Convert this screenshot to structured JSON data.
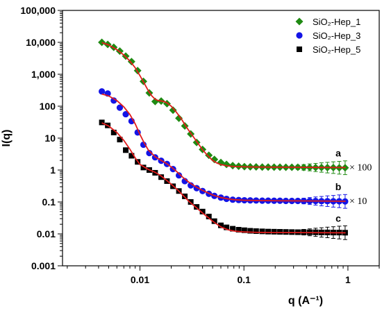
{
  "chart_data": {
    "type": "scatter",
    "x_scale": "log",
    "y_scale": "log",
    "xlabel": "q (A⁻¹)",
    "ylabel": "I(q)",
    "xlim": [
      0.0018,
      2.0
    ],
    "ylim": [
      0.001,
      100000
    ],
    "x_ticks": [
      0.01,
      0.1,
      1
    ],
    "x_tick_labels": [
      "0.01",
      "0.1",
      "1"
    ],
    "y_ticks": [
      0.001,
      0.01,
      0.1,
      1,
      10,
      100,
      1000,
      10000,
      100000
    ],
    "y_tick_labels": [
      "0.001",
      "0.01",
      "0.1",
      "1",
      "10",
      "100",
      "1,000",
      "10,000",
      "100,000"
    ],
    "grid": false,
    "legend_position": "top-right",
    "fit_color": "#e11b1b",
    "series": [
      {
        "name": "SiO₂-Hep_1",
        "marker": "diamond",
        "color": "#1f8a12",
        "tag": "a",
        "multiplier": "× 100",
        "x": [
          0.0043,
          0.0049,
          0.0056,
          0.0064,
          0.0073,
          0.0083,
          0.0095,
          0.0108,
          0.0123,
          0.014,
          0.016,
          0.0182,
          0.0208,
          0.0237,
          0.027,
          0.0308,
          0.0351,
          0.04,
          0.046,
          0.052,
          0.06,
          0.068,
          0.078,
          0.089,
          0.101,
          0.115,
          0.131,
          0.15,
          0.171,
          0.195,
          0.222,
          0.253,
          0.289,
          0.33,
          0.376,
          0.429,
          0.489,
          0.557,
          0.635,
          0.724,
          0.825,
          0.94
        ],
        "y": [
          10000,
          8600,
          7000,
          5300,
          3700,
          2500,
          1300,
          600,
          260,
          140,
          145,
          120,
          75,
          42,
          24,
          13.5,
          7.3,
          4.4,
          2.9,
          2.15,
          1.72,
          1.5,
          1.38,
          1.32,
          1.28,
          1.26,
          1.25,
          1.24,
          1.24,
          1.23,
          1.23,
          1.22,
          1.22,
          1.22,
          1.21,
          1.21,
          1.2,
          1.2,
          1.19,
          1.19,
          1.18,
          1.18
        ],
        "error_from_q": 0.3,
        "fit": {
          "x": [
            0.0043,
            0.005,
            0.006,
            0.007,
            0.008,
            0.009,
            0.01,
            0.011,
            0.012,
            0.013,
            0.014,
            0.015,
            0.016,
            0.017,
            0.018,
            0.02,
            0.022,
            0.025,
            0.028,
            0.032,
            0.036,
            0.04,
            0.045,
            0.05,
            0.055,
            0.06,
            0.07,
            0.08,
            0.1,
            0.13,
            0.2,
            0.3,
            0.5,
            0.95
          ],
          "y": [
            9800,
            8300,
            5900,
            4000,
            2600,
            1600,
            900,
            520,
            310,
            210,
            165,
            150,
            146,
            140,
            130,
            100,
            70,
            40,
            22,
            12,
            7,
            4.3,
            2.8,
            2.0,
            1.65,
            1.48,
            1.34,
            1.29,
            1.26,
            1.24,
            1.23,
            1.22,
            1.21,
            1.2
          ]
        }
      },
      {
        "name": "SiO₂-Hep_3",
        "marker": "circle",
        "color": "#1414e6",
        "tag": "b",
        "multiplier": "× 10",
        "x": [
          0.0043,
          0.0049,
          0.0056,
          0.0064,
          0.0073,
          0.0083,
          0.0095,
          0.0108,
          0.0123,
          0.014,
          0.016,
          0.0182,
          0.0208,
          0.0237,
          0.027,
          0.0308,
          0.0351,
          0.04,
          0.046,
          0.052,
          0.06,
          0.068,
          0.078,
          0.089,
          0.101,
          0.115,
          0.131,
          0.15,
          0.171,
          0.195,
          0.222,
          0.253,
          0.289,
          0.33,
          0.376,
          0.429,
          0.489,
          0.557,
          0.635,
          0.724,
          0.825,
          0.94
        ],
        "y": [
          290,
          250,
          150,
          90,
          56,
          34,
          15,
          6.2,
          3.4,
          2.5,
          1.95,
          1.55,
          1.07,
          0.68,
          0.45,
          0.33,
          0.27,
          0.22,
          0.18,
          0.155,
          0.137,
          0.125,
          0.118,
          0.115,
          0.113,
          0.112,
          0.111,
          0.11,
          0.11,
          0.109,
          0.109,
          0.108,
          0.108,
          0.108,
          0.107,
          0.107,
          0.107,
          0.106,
          0.106,
          0.105,
          0.105,
          0.104
        ],
        "error_from_q": 0.3,
        "fit": {
          "x": [
            0.0043,
            0.005,
            0.006,
            0.007,
            0.008,
            0.009,
            0.01,
            0.011,
            0.012,
            0.014,
            0.016,
            0.018,
            0.02,
            0.023,
            0.026,
            0.03,
            0.035,
            0.04,
            0.05,
            0.06,
            0.07,
            0.08,
            0.1,
            0.13,
            0.2,
            0.3,
            0.5,
            0.95
          ],
          "y": [
            240,
            210,
            150,
            95,
            55,
            28,
            13,
            7,
            4.3,
            2.6,
            2.0,
            1.6,
            1.25,
            0.85,
            0.58,
            0.4,
            0.29,
            0.23,
            0.165,
            0.138,
            0.125,
            0.118,
            0.113,
            0.111,
            0.109,
            0.108,
            0.107,
            0.105
          ]
        }
      },
      {
        "name": "SiO₂-Hep_5",
        "marker": "square",
        "color": "#000000",
        "tag": "c",
        "multiplier": "",
        "x": [
          0.0043,
          0.0049,
          0.0056,
          0.0064,
          0.0073,
          0.0083,
          0.0095,
          0.0108,
          0.0123,
          0.014,
          0.016,
          0.0182,
          0.0208,
          0.0237,
          0.027,
          0.0308,
          0.0351,
          0.04,
          0.046,
          0.052,
          0.06,
          0.068,
          0.078,
          0.089,
          0.101,
          0.115,
          0.131,
          0.15,
          0.171,
          0.195,
          0.222,
          0.253,
          0.289,
          0.33,
          0.376,
          0.429,
          0.489,
          0.557,
          0.635,
          0.724,
          0.825,
          0.94
        ],
        "y": [
          31,
          25,
          15,
          9,
          4.2,
          2.8,
          1.8,
          1.2,
          1.0,
          0.82,
          0.6,
          0.45,
          0.31,
          0.22,
          0.15,
          0.1,
          0.07,
          0.05,
          0.035,
          0.025,
          0.0185,
          0.016,
          0.0145,
          0.0135,
          0.013,
          0.0125,
          0.0122,
          0.012,
          0.0118,
          0.0117,
          0.0116,
          0.0115,
          0.0114,
          0.0113,
          0.0113,
          0.0112,
          0.0112,
          0.0111,
          0.0111,
          0.011,
          0.011,
          0.0109
        ],
        "error_from_q": 0.3,
        "fit": {
          "x": [
            0.0043,
            0.005,
            0.006,
            0.007,
            0.008,
            0.009,
            0.01,
            0.012,
            0.014,
            0.016,
            0.018,
            0.02,
            0.023,
            0.026,
            0.03,
            0.035,
            0.04,
            0.05,
            0.06,
            0.07,
            0.08,
            0.1,
            0.13,
            0.2,
            0.3,
            0.5,
            0.95
          ],
          "y": [
            30,
            24,
            15,
            8.5,
            4.5,
            2.4,
            1.5,
            1.05,
            0.85,
            0.65,
            0.48,
            0.36,
            0.24,
            0.16,
            0.1,
            0.066,
            0.045,
            0.025,
            0.0165,
            0.0135,
            0.0123,
            0.0115,
            0.0112,
            0.011,
            0.011,
            0.0109,
            0.0108
          ]
        }
      }
    ]
  }
}
